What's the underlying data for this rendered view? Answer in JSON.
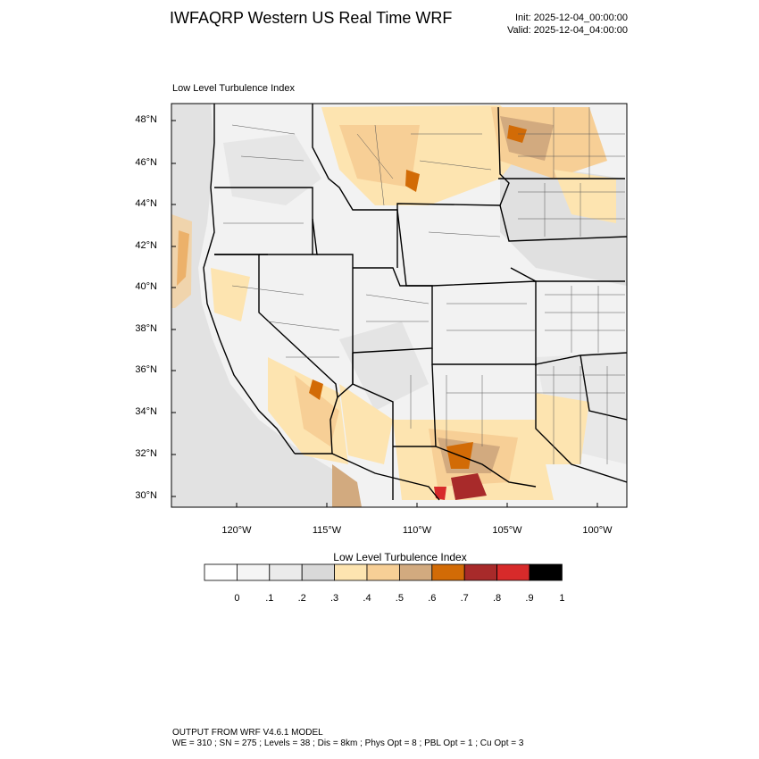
{
  "header": {
    "title": "IWFAQRP Western US Real Time WRF",
    "init": "Init: 2025-12-04_00:00:00",
    "valid": "Valid: 2025-12-04_04:00:00"
  },
  "map": {
    "label": "Low Level Turbulence Index",
    "lat_labels": [
      "48°N",
      "46°N",
      "44°N",
      "42°N",
      "40°N",
      "38°N",
      "36°N",
      "34°N",
      "32°N",
      "30°N"
    ],
    "lon_labels": [
      "120°W",
      "115°W",
      "110°W",
      "105°W",
      "100°W"
    ]
  },
  "colorbar": {
    "title": "Low Level Turbulence Index",
    "ticks": [
      "0",
      ".1",
      ".2",
      ".3",
      ".4",
      ".5",
      ".6",
      ".7",
      ".8",
      ".9",
      "1"
    ],
    "colors": [
      "#ffffff",
      "#f5f5f5",
      "#ebebeb",
      "#d9d9d9",
      "#fde4b0",
      "#f7cf96",
      "#d2aa7f",
      "#d26b06",
      "#a82a2a",
      "#d72a2a",
      "#000000"
    ]
  },
  "footer": {
    "line1": "OUTPUT FROM WRF V4.6.1 MODEL",
    "line2": "WE = 310 ; SN = 275 ; Levels = 38 ; Dis = 8km ; Phys Opt = 8 ; PBL Opt = 1 ; Cu Opt = 3"
  }
}
